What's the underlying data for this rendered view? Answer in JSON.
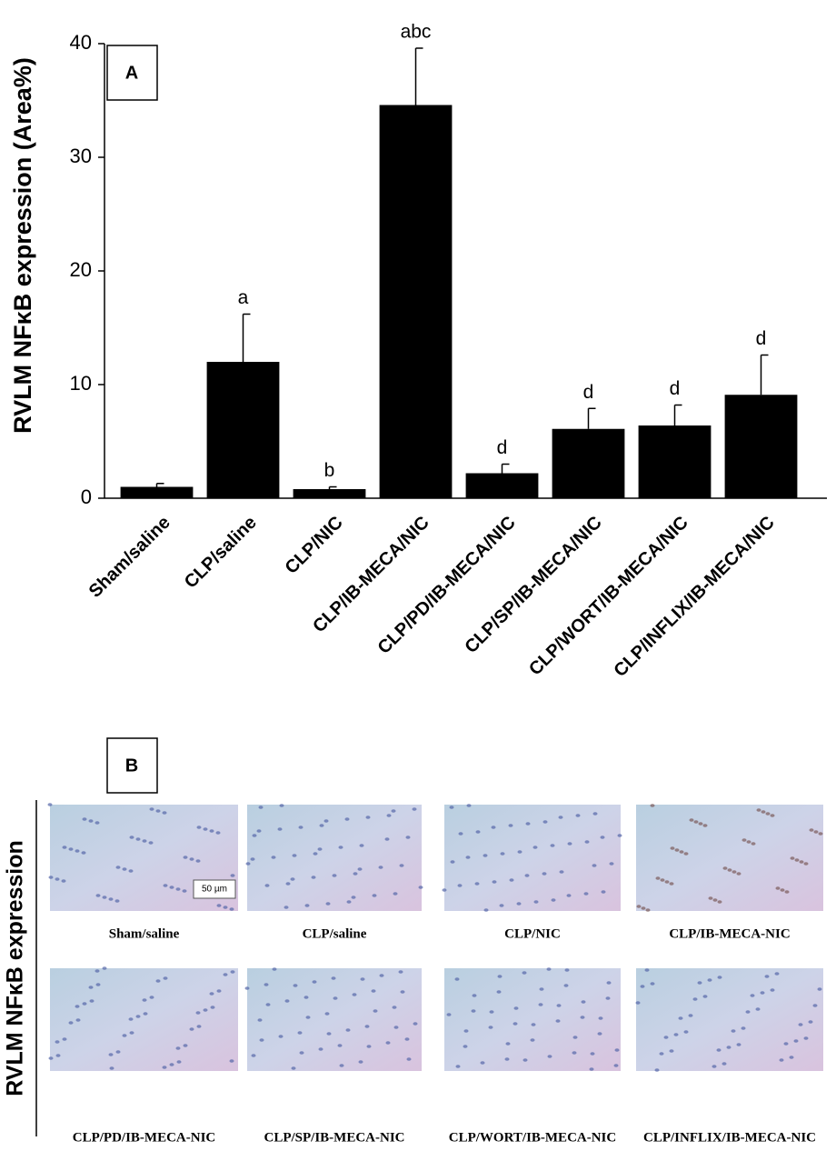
{
  "chart_data": {
    "type": "bar",
    "panel_label": "A",
    "ylabel": "RVLM NFκB expression (Area%)",
    "categories": [
      "Sham/saline",
      "CLP/saline",
      "CLP/NIC",
      "CLP/IB-MECA/NIC",
      "CLP/PD/IB-MECA/NIC",
      "CLP/SP/IB-MECA/NIC",
      "CLP/WORT/IB-MECA/NIC",
      "CLP/INFLIX/IB-MECA/NIC"
    ],
    "values": [
      1.0,
      12.0,
      0.8,
      34.6,
      2.2,
      6.1,
      6.4,
      9.1
    ],
    "errors": [
      0.3,
      4.2,
      0.2,
      5.0,
      0.8,
      1.8,
      1.8,
      3.5
    ],
    "significance": [
      null,
      "a",
      "b",
      "abc",
      "d",
      "d",
      "d",
      "d"
    ],
    "color": "#000000",
    "ylim": [
      0,
      40
    ],
    "yticks": [
      0,
      10,
      20,
      30,
      40
    ],
    "grid": false
  },
  "panel_b": {
    "label": "B",
    "ylabel": "RVLM NFκB expression",
    "scale_bar": "50 µm",
    "images": [
      {
        "caption": "Sham/saline"
      },
      {
        "caption": "CLP/saline"
      },
      {
        "caption": "CLP/NIC"
      },
      {
        "caption": "CLP/IB-MECA-NIC"
      },
      {
        "caption": "CLP/PD/IB-MECA-NIC"
      },
      {
        "caption": "CLP/SP/IB-MECA-NIC"
      },
      {
        "caption": "CLP/WORT/IB-MECA-NIC"
      },
      {
        "caption": "CLP/INFLIX/IB-MECA-NIC"
      }
    ]
  }
}
